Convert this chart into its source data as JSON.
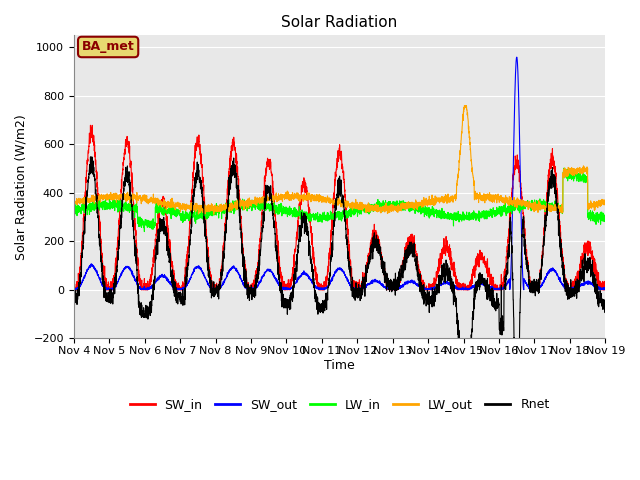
{
  "title": "Solar Radiation",
  "xlabel": "Time",
  "ylabel": "Solar Radiation (W/m2)",
  "ylim": [
    -200,
    1050
  ],
  "xlim_days": [
    4,
    19
  ],
  "yticks": [
    -200,
    0,
    200,
    400,
    600,
    800,
    1000
  ],
  "xtick_labels": [
    "Nov 4",
    "Nov 5",
    "Nov 6",
    "Nov 7",
    "Nov 8",
    "Nov 9",
    "Nov 10",
    "Nov 11",
    "Nov 12",
    "Nov 13",
    "Nov 14",
    "Nov 15",
    "Nov 16",
    "Nov 17",
    "Nov 18",
    "Nov 19"
  ],
  "legend_labels": [
    "SW_in",
    "SW_out",
    "LW_in",
    "LW_out",
    "Rnet"
  ],
  "line_colors": [
    "red",
    "blue",
    "lime",
    "orange",
    "black"
  ],
  "annotation_text": "BA_met",
  "annotation_color": "#8B0000",
  "annotation_bg": "#E8D870",
  "background_inner": "#E8E8E8",
  "background_outer": "#FFFFFF",
  "grid_color": "#FFFFFF",
  "title_fontsize": 11,
  "label_fontsize": 9,
  "tick_fontsize": 8,
  "num_points": 3600,
  "days_start": 4,
  "days_end": 19
}
